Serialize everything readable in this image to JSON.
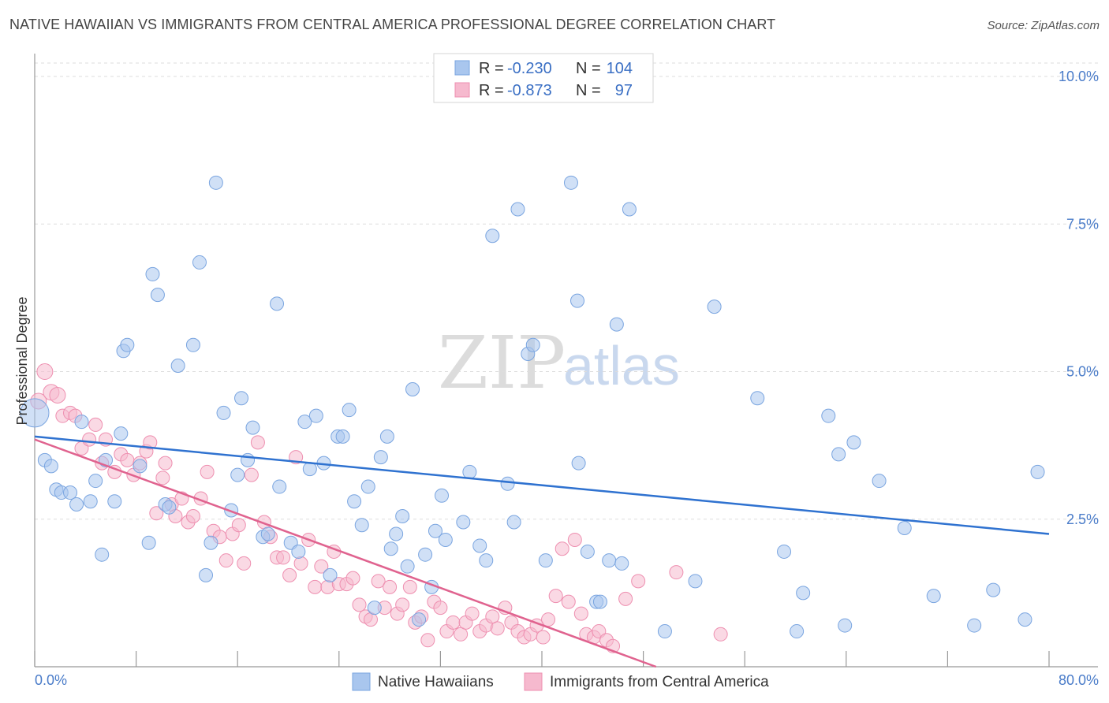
{
  "title": "NATIVE HAWAIIAN VS IMMIGRANTS FROM CENTRAL AMERICA PROFESSIONAL DEGREE CORRELATION CHART",
  "source": "Source: ZipAtlas.com",
  "watermark": {
    "zip": "ZIP",
    "atlas": "atlas"
  },
  "legend_box": {
    "rows": [
      {
        "r_label": "R =",
        "r_value": "-0.230",
        "n_label": "N =",
        "n_value": "104"
      },
      {
        "r_label": "R =",
        "r_value": "-0.873",
        "n_label": "N =",
        "n_value": "97"
      }
    ]
  },
  "bottom_legend": [
    "Native Hawaiians",
    "Immigrants from Central America"
  ],
  "colors": {
    "blue_fill": "#a9c6ee",
    "blue_stroke": "#7aa5e0",
    "blue_line": "#2f72d0",
    "pink_fill": "#f6b9ce",
    "pink_stroke": "#ee8fb0",
    "pink_line": "#e0638f",
    "grid": "#dddddd",
    "tick_text": "#4a7cc9"
  },
  "chart_data": {
    "type": "scatter",
    "xlabel": "",
    "ylabel": "Professional Degree",
    "xlim": [
      0,
      80
    ],
    "ylim": [
      0,
      10.3
    ],
    "x_tick_labels": [
      "0.0%",
      "80.0%"
    ],
    "y_ticks": [
      2.5,
      5.0,
      7.5,
      10.0
    ],
    "y_tick_labels": [
      "2.5%",
      "5.0%",
      "7.5%",
      "10.0%"
    ],
    "grid": true,
    "legend_position": "top-center",
    "series": [
      {
        "name": "Native Hawaiians",
        "color": "#a9c6ee",
        "trend": {
          "x": [
            0,
            80
          ],
          "y": [
            3.9,
            2.25
          ]
        },
        "points": [
          [
            0,
            4.3
          ],
          [
            0.8,
            3.5
          ],
          [
            1.3,
            3.4
          ],
          [
            1.7,
            3.0
          ],
          [
            2.1,
            2.95
          ],
          [
            2.8,
            2.95
          ],
          [
            3.3,
            2.75
          ],
          [
            3.7,
            4.15
          ],
          [
            4.4,
            2.8
          ],
          [
            4.8,
            3.15
          ],
          [
            5.3,
            1.9
          ],
          [
            5.6,
            3.5
          ],
          [
            6.3,
            2.8
          ],
          [
            6.8,
            3.95
          ],
          [
            7.0,
            5.35
          ],
          [
            7.3,
            5.45
          ],
          [
            8.3,
            3.4
          ],
          [
            9.0,
            2.1
          ],
          [
            9.3,
            6.65
          ],
          [
            9.7,
            6.3
          ],
          [
            10.3,
            2.75
          ],
          [
            10.6,
            2.7
          ],
          [
            11.3,
            5.1
          ],
          [
            12.5,
            5.45
          ],
          [
            13.0,
            6.85
          ],
          [
            13.5,
            1.55
          ],
          [
            13.9,
            2.1
          ],
          [
            14.3,
            8.2
          ],
          [
            14.9,
            4.3
          ],
          [
            15.5,
            2.65
          ],
          [
            16.0,
            3.25
          ],
          [
            16.3,
            4.55
          ],
          [
            16.8,
            3.5
          ],
          [
            17.2,
            4.05
          ],
          [
            18.0,
            2.2
          ],
          [
            18.4,
            2.25
          ],
          [
            19.1,
            6.15
          ],
          [
            19.3,
            3.05
          ],
          [
            20.2,
            2.1
          ],
          [
            20.8,
            1.95
          ],
          [
            21.3,
            4.15
          ],
          [
            21.7,
            3.35
          ],
          [
            22.2,
            4.25
          ],
          [
            22.8,
            3.45
          ],
          [
            23.3,
            1.55
          ],
          [
            23.9,
            3.9
          ],
          [
            24.3,
            3.9
          ],
          [
            24.8,
            4.35
          ],
          [
            25.2,
            2.8
          ],
          [
            25.8,
            2.4
          ],
          [
            26.3,
            3.05
          ],
          [
            26.8,
            1.0
          ],
          [
            27.3,
            3.55
          ],
          [
            27.8,
            3.9
          ],
          [
            28.1,
            2.0
          ],
          [
            28.5,
            2.25
          ],
          [
            29.0,
            2.55
          ],
          [
            29.4,
            1.7
          ],
          [
            29.8,
            4.7
          ],
          [
            30.3,
            0.8
          ],
          [
            30.8,
            1.9
          ],
          [
            31.3,
            1.35
          ],
          [
            31.6,
            2.3
          ],
          [
            32.1,
            2.9
          ],
          [
            32.4,
            2.15
          ],
          [
            33.8,
            2.45
          ],
          [
            34.3,
            3.3
          ],
          [
            35.1,
            2.05
          ],
          [
            35.6,
            1.8
          ],
          [
            36.1,
            7.3
          ],
          [
            37.3,
            3.1
          ],
          [
            37.8,
            2.45
          ],
          [
            38.1,
            7.75
          ],
          [
            38.9,
            5.3
          ],
          [
            39.3,
            5.45
          ],
          [
            40.3,
            1.8
          ],
          [
            42.3,
            8.2
          ],
          [
            42.8,
            6.2
          ],
          [
            42.9,
            3.45
          ],
          [
            43.6,
            1.95
          ],
          [
            44.3,
            1.1
          ],
          [
            44.6,
            1.1
          ],
          [
            45.3,
            1.8
          ],
          [
            45.9,
            5.8
          ],
          [
            46.3,
            1.75
          ],
          [
            46.9,
            7.75
          ],
          [
            49.7,
            0.6
          ],
          [
            52.1,
            1.45
          ],
          [
            53.6,
            6.1
          ],
          [
            57.0,
            4.55
          ],
          [
            59.1,
            1.95
          ],
          [
            60.1,
            0.6
          ],
          [
            60.6,
            1.25
          ],
          [
            62.6,
            4.25
          ],
          [
            63.4,
            3.6
          ],
          [
            63.9,
            0.7
          ],
          [
            64.6,
            3.8
          ],
          [
            66.6,
            3.15
          ],
          [
            68.6,
            2.35
          ],
          [
            70.9,
            1.2
          ],
          [
            74.1,
            0.7
          ],
          [
            75.6,
            1.3
          ],
          [
            78.1,
            0.8
          ],
          [
            79.1,
            3.3
          ]
        ]
      },
      {
        "name": "Immigrants from Central America",
        "color": "#f6b9ce",
        "trend": {
          "x": [
            0,
            49
          ],
          "y": [
            3.85,
            0.0
          ]
        },
        "points": [
          [
            0.3,
            4.5
          ],
          [
            0.8,
            5.0
          ],
          [
            1.3,
            4.65
          ],
          [
            1.8,
            4.6
          ],
          [
            2.2,
            4.25
          ],
          [
            2.8,
            4.3
          ],
          [
            3.2,
            4.25
          ],
          [
            3.7,
            3.7
          ],
          [
            4.3,
            3.85
          ],
          [
            4.8,
            4.1
          ],
          [
            5.3,
            3.45
          ],
          [
            5.6,
            3.85
          ],
          [
            6.3,
            3.3
          ],
          [
            6.8,
            3.6
          ],
          [
            7.3,
            3.5
          ],
          [
            7.8,
            3.25
          ],
          [
            8.3,
            3.45
          ],
          [
            8.8,
            3.65
          ],
          [
            9.1,
            3.8
          ],
          [
            9.6,
            2.6
          ],
          [
            10.1,
            3.2
          ],
          [
            10.3,
            3.45
          ],
          [
            10.8,
            2.75
          ],
          [
            11.1,
            2.55
          ],
          [
            11.6,
            2.85
          ],
          [
            12.1,
            2.45
          ],
          [
            12.5,
            2.55
          ],
          [
            13.1,
            2.85
          ],
          [
            13.6,
            3.3
          ],
          [
            14.1,
            2.3
          ],
          [
            14.6,
            2.2
          ],
          [
            15.1,
            1.8
          ],
          [
            15.6,
            2.25
          ],
          [
            16.1,
            2.4
          ],
          [
            16.5,
            1.75
          ],
          [
            17.1,
            3.25
          ],
          [
            17.6,
            3.8
          ],
          [
            18.1,
            2.45
          ],
          [
            18.6,
            2.2
          ],
          [
            19.1,
            1.85
          ],
          [
            19.6,
            1.85
          ],
          [
            20.1,
            1.55
          ],
          [
            20.6,
            3.55
          ],
          [
            21.0,
            1.75
          ],
          [
            21.6,
            2.15
          ],
          [
            22.1,
            1.35
          ],
          [
            22.6,
            1.7
          ],
          [
            23.1,
            1.35
          ],
          [
            23.6,
            1.95
          ],
          [
            24.0,
            1.4
          ],
          [
            24.6,
            1.4
          ],
          [
            25.1,
            1.5
          ],
          [
            25.6,
            1.05
          ],
          [
            26.1,
            0.85
          ],
          [
            26.5,
            0.8
          ],
          [
            27.1,
            1.45
          ],
          [
            27.6,
            1.0
          ],
          [
            28.0,
            1.35
          ],
          [
            28.6,
            0.9
          ],
          [
            29.0,
            1.05
          ],
          [
            29.6,
            1.35
          ],
          [
            30.0,
            0.75
          ],
          [
            30.5,
            0.85
          ],
          [
            31.0,
            0.45
          ],
          [
            31.5,
            1.1
          ],
          [
            32.0,
            1.0
          ],
          [
            32.5,
            0.6
          ],
          [
            33.0,
            0.75
          ],
          [
            33.6,
            0.55
          ],
          [
            34.0,
            0.75
          ],
          [
            34.5,
            0.9
          ],
          [
            35.1,
            0.6
          ],
          [
            35.6,
            0.7
          ],
          [
            36.1,
            0.85
          ],
          [
            36.5,
            0.65
          ],
          [
            37.1,
            1.0
          ],
          [
            37.6,
            0.75
          ],
          [
            38.1,
            0.6
          ],
          [
            38.6,
            0.5
          ],
          [
            39.1,
            0.55
          ],
          [
            39.6,
            0.7
          ],
          [
            40.1,
            0.5
          ],
          [
            40.5,
            0.8
          ],
          [
            41.1,
            1.2
          ],
          [
            41.6,
            2.0
          ],
          [
            42.1,
            1.1
          ],
          [
            42.6,
            2.15
          ],
          [
            43.1,
            0.9
          ],
          [
            43.5,
            0.55
          ],
          [
            44.1,
            0.5
          ],
          [
            44.5,
            0.6
          ],
          [
            45.1,
            0.45
          ],
          [
            45.6,
            0.35
          ],
          [
            46.6,
            1.15
          ],
          [
            47.6,
            1.45
          ],
          [
            50.6,
            1.6
          ],
          [
            54.1,
            0.55
          ]
        ]
      }
    ]
  }
}
